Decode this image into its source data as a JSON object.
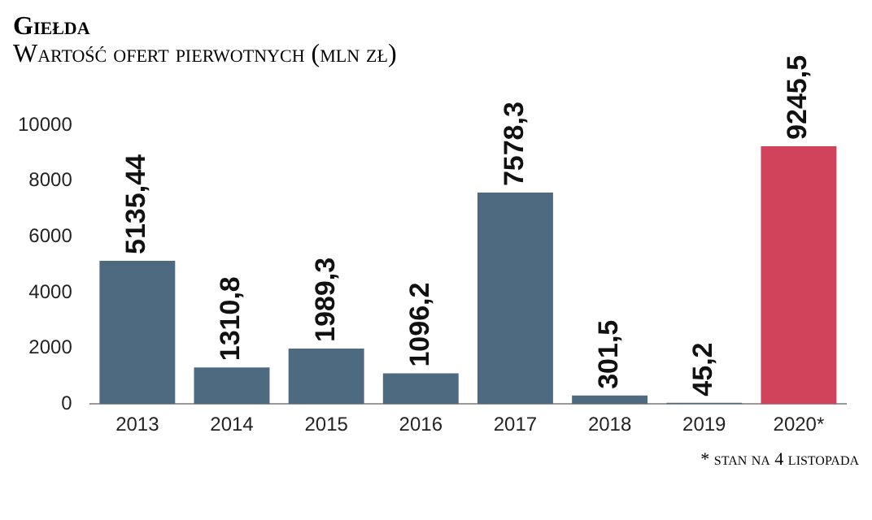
{
  "chart_data": {
    "type": "bar",
    "title": "Giełda",
    "subtitle": "Wartość ofert pierwotnych (mln zł)",
    "categories": [
      "2013",
      "2014",
      "2015",
      "2016",
      "2017",
      "2018",
      "2019",
      "2020*"
    ],
    "values": [
      5135.44,
      1310.8,
      1989.3,
      1096.2,
      7578.3,
      301.5,
      45.2,
      9245.5
    ],
    "colors": [
      "#4e6a80",
      "#4e6a80",
      "#4e6a80",
      "#4e6a80",
      "#4e6a80",
      "#4e6a80",
      "#4e6a80",
      "#d0435b"
    ],
    "value_labels": [
      "5135,44",
      "1310,8",
      "1989,3",
      "1096,2",
      "7578,3",
      "301,5",
      "45,2",
      "9245,5"
    ],
    "ylim": [
      0,
      10000
    ],
    "yticks": [
      0,
      2000,
      4000,
      6000,
      8000,
      10000
    ],
    "annotations": [
      "* stan na 4 listopada"
    ]
  }
}
